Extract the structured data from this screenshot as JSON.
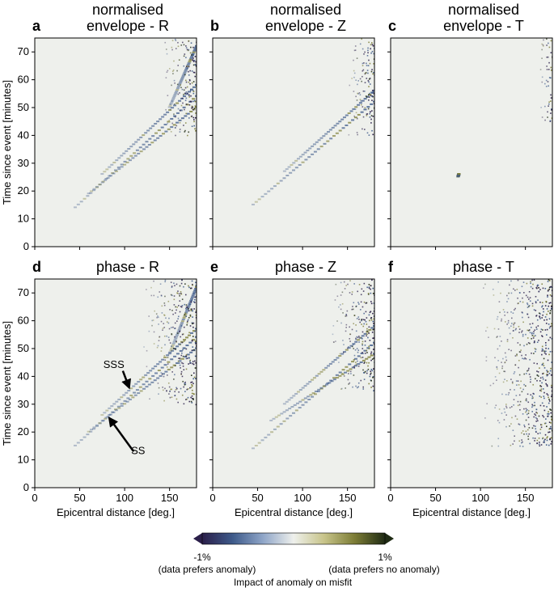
{
  "chart_data": [
    {
      "type": "heatmap",
      "panel_label": "a",
      "title": "normalised\nenvelope - R",
      "xlabel": "",
      "ylabel": "Time since event [minutes]",
      "xlim": [
        0,
        180
      ],
      "ylim": [
        0,
        75
      ],
      "xticks": [
        0,
        50,
        100,
        150
      ],
      "yticks": [
        0,
        10,
        20,
        30,
        40,
        50,
        60,
        70
      ],
      "show_xticklabels": false,
      "show_yticklabels": true,
      "branches": [
        {
          "x": [
            45,
            180
          ],
          "y": [
            14,
            54
          ]
        },
        {
          "x": [
            75,
            180
          ],
          "y": [
            26,
            58
          ]
        },
        {
          "x": [
            60,
            180
          ],
          "y": [
            19,
            50
          ]
        },
        {
          "x": [
            150,
            180
          ],
          "y": [
            50,
            72
          ]
        }
      ],
      "noise_region": {
        "x": [
          140,
          180
        ],
        "y": [
          40,
          75
        ]
      }
    },
    {
      "type": "heatmap",
      "panel_label": "b",
      "title": "normalised\nenvelope - Z",
      "xlabel": "",
      "ylabel": "",
      "xlim": [
        0,
        180
      ],
      "ylim": [
        0,
        75
      ],
      "xticks": [
        0,
        50,
        100,
        150
      ],
      "yticks": [
        0,
        10,
        20,
        30,
        40,
        50,
        60,
        70
      ],
      "show_xticklabels": false,
      "show_yticklabels": false,
      "branches": [
        {
          "x": [
            45,
            180
          ],
          "y": [
            15,
            52
          ]
        },
        {
          "x": [
            80,
            180
          ],
          "y": [
            27,
            56
          ]
        }
      ],
      "noise_region": {
        "x": [
          150,
          180
        ],
        "y": [
          40,
          75
        ]
      }
    },
    {
      "type": "heatmap",
      "panel_label": "c",
      "title": "normalised\nenvelope - T",
      "xlabel": "",
      "ylabel": "",
      "xlim": [
        0,
        180
      ],
      "ylim": [
        0,
        75
      ],
      "xticks": [
        0,
        50,
        100,
        150
      ],
      "yticks": [
        0,
        10,
        20,
        30,
        40,
        50,
        60,
        70
      ],
      "show_xticklabels": false,
      "show_yticklabels": false,
      "branches": [
        {
          "x": [
            75,
            76
          ],
          "y": [
            25,
            26
          ]
        }
      ],
      "noise_region": {
        "x": [
          165,
          180
        ],
        "y": [
          45,
          75
        ]
      }
    },
    {
      "type": "heatmap",
      "panel_label": "d",
      "title": "phase - R",
      "xlabel": "Epicentral distance [deg.]",
      "ylabel": "Time since event [minutes]",
      "xlim": [
        0,
        180
      ],
      "ylim": [
        0,
        75
      ],
      "xticks": [
        0,
        50,
        100,
        150
      ],
      "yticks": [
        0,
        10,
        20,
        30,
        40,
        50,
        60,
        70
      ],
      "show_xticklabels": true,
      "show_yticklabels": true,
      "branches": [
        {
          "x": [
            45,
            180
          ],
          "y": [
            15,
            54
          ]
        },
        {
          "x": [
            75,
            180
          ],
          "y": [
            26,
            57
          ]
        },
        {
          "x": [
            60,
            180
          ],
          "y": [
            20,
            50
          ]
        },
        {
          "x": [
            150,
            180
          ],
          "y": [
            48,
            72
          ]
        }
      ],
      "noise_region": {
        "x": [
          120,
          180
        ],
        "y": [
          30,
          75
        ]
      },
      "annotations": [
        {
          "text": "SSS",
          "text_at": [
            88,
            43
          ],
          "arrow_from": [
            98,
            42
          ],
          "arrow_to": [
            105,
            36
          ]
        },
        {
          "text": "SS",
          "text_at": [
            115,
            12
          ],
          "arrow_from": [
            110,
            13
          ],
          "arrow_to": [
            83,
            25
          ]
        }
      ]
    },
    {
      "type": "heatmap",
      "panel_label": "e",
      "title": "phase - Z",
      "xlabel": "Epicentral distance [deg.]",
      "ylabel": "",
      "xlim": [
        0,
        180
      ],
      "ylim": [
        0,
        75
      ],
      "xticks": [
        0,
        50,
        100,
        150
      ],
      "yticks": [
        0,
        10,
        20,
        30,
        40,
        50,
        60,
        70
      ],
      "show_xticklabels": true,
      "show_yticklabels": false,
      "branches": [
        {
          "x": [
            45,
            180
          ],
          "y": [
            14,
            52
          ]
        },
        {
          "x": [
            80,
            180
          ],
          "y": [
            30,
            58
          ]
        },
        {
          "x": [
            65,
            180
          ],
          "y": [
            24,
            48
          ]
        }
      ],
      "noise_region": {
        "x": [
          130,
          180
        ],
        "y": [
          35,
          75
        ]
      }
    },
    {
      "type": "heatmap",
      "panel_label": "f",
      "title": "phase - T",
      "xlabel": "Epicentral distance [deg.]",
      "ylabel": "",
      "xlim": [
        0,
        180
      ],
      "ylim": [
        0,
        75
      ],
      "xticks": [
        0,
        50,
        100,
        150
      ],
      "yticks": [
        0,
        10,
        20,
        30,
        40,
        50,
        60,
        70
      ],
      "show_xticklabels": true,
      "show_yticklabels": false,
      "branches": [],
      "noise_region": {
        "x": [
          100,
          180
        ],
        "y": [
          15,
          75
        ]
      }
    }
  ],
  "colorbar": {
    "label": "Impact of anomaly on misfit",
    "min_label": "-1%",
    "max_label": "1%",
    "min_caption": "(data prefers anomaly)",
    "max_caption": "(data prefers no anomaly)",
    "range": [
      -1,
      1
    ],
    "colors": [
      "#2b1f4a",
      "#3e5a8a",
      "#8fa5c8",
      "#eef0ec",
      "#c8c48a",
      "#7d7d36",
      "#1f2b14"
    ]
  },
  "colors": {
    "background": "#eef0ec",
    "negative": "#3e5a8a",
    "positive": "#7d7d36"
  }
}
